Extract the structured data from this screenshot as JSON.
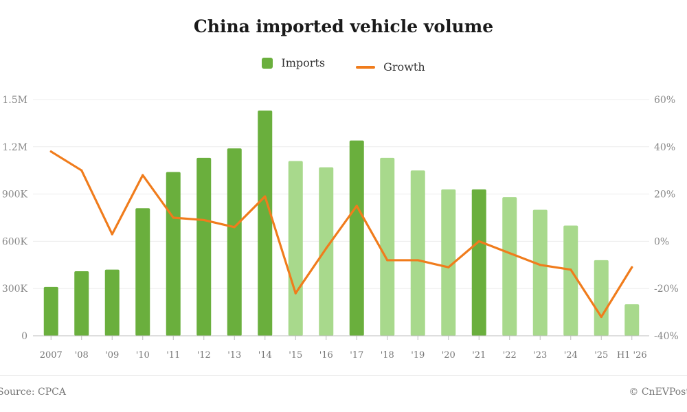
{
  "chart_data": {
    "type": "bar",
    "title": "China imported vehicle volume",
    "categories": [
      "2007",
      "'08",
      "'09",
      "'10",
      "'11",
      "'12",
      "'13",
      "'14",
      "'15",
      "'16",
      "'17",
      "'18",
      "'19",
      "'20",
      "'21",
      "'22",
      "'23",
      "'24",
      "'25",
      "H1 '26"
    ],
    "series": [
      {
        "name": "Imports",
        "type": "bar",
        "axis": "left",
        "values": [
          310000,
          410000,
          420000,
          810000,
          1040000,
          1130000,
          1190000,
          1430000,
          1110000,
          1070000,
          1240000,
          1130000,
          1050000,
          930000,
          930000,
          880000,
          800000,
          700000,
          480000,
          200000
        ],
        "colors": [
          "#6aaf3d",
          "#6aaf3d",
          "#6aaf3d",
          "#6aaf3d",
          "#6aaf3d",
          "#6aaf3d",
          "#6aaf3d",
          "#6aaf3d",
          "#a8d98c",
          "#a8d98c",
          "#6aaf3d",
          "#a8d98c",
          "#a8d98c",
          "#a8d98c",
          "#6aaf3d",
          "#a8d98c",
          "#a8d98c",
          "#a8d98c",
          "#a8d98c",
          "#a8d98c"
        ]
      },
      {
        "name": "Growth",
        "type": "line",
        "axis": "right",
        "color": "#f07c1c",
        "values": [
          38,
          30,
          3,
          28,
          10,
          9,
          6,
          19,
          -22,
          -3,
          15,
          -8,
          -8,
          -11,
          0,
          -5,
          -10,
          -12,
          -32,
          -11
        ]
      }
    ],
    "y_left": {
      "min": 0,
      "max": 1500000,
      "ticks": [
        0,
        300000,
        600000,
        900000,
        1200000,
        1500000
      ],
      "tick_labels": [
        "0",
        "300K",
        "600K",
        "900K",
        "1.2M",
        "1.5M"
      ]
    },
    "y_right": {
      "min": -40,
      "max": 60,
      "ticks": [
        -40,
        -20,
        0,
        20,
        40,
        60
      ],
      "tick_labels": [
        "-40%",
        "-20%",
        "0%",
        "20%",
        "40%",
        "60%"
      ]
    },
    "grid": true,
    "legend_position": "top-center"
  },
  "legend": {
    "imports_label": "Imports",
    "growth_label": "Growth",
    "imports_color": "#6aaf3d",
    "growth_color": "#f07c1c"
  },
  "footer": {
    "source": "Source: CPCA",
    "credit": "© CnEVPost"
  }
}
